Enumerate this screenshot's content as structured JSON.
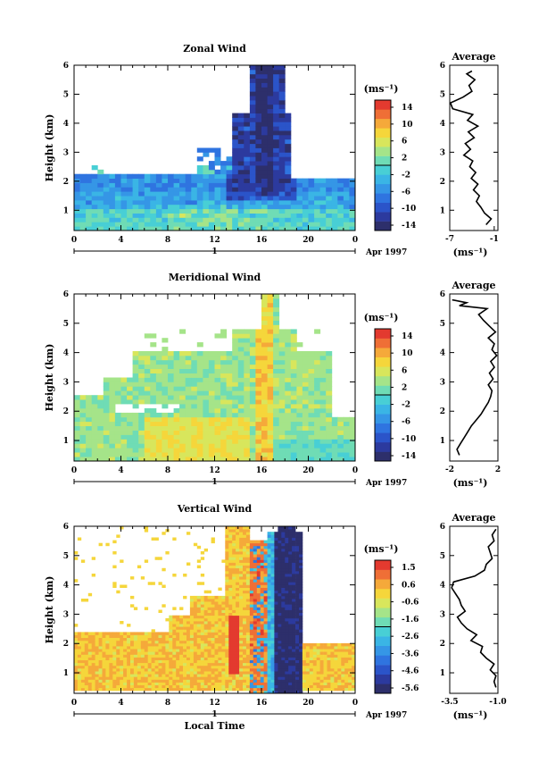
{
  "colors": {
    "scale": [
      "#2d2f6b",
      "#2c3a9e",
      "#2b54c9",
      "#2f74e0",
      "#3596e6",
      "#3ab5e5",
      "#48cfd5",
      "#6fdcb5",
      "#a5e489",
      "#d8e65c",
      "#f5d63b",
      "#f5a93a",
      "#ef6f36",
      "#e33a2f"
    ]
  },
  "chart_data": [
    {
      "type": "heatmap",
      "title": "Zonal Wind",
      "ylabel": "Height (km)",
      "x_ticks": [
        "0",
        "4",
        "8",
        "12",
        "16",
        "20",
        "0"
      ],
      "y_ticks": [
        "1",
        "2",
        "3",
        "4",
        "5",
        "6"
      ],
      "xlim": [
        0,
        24
      ],
      "ylim": [
        0.3,
        6
      ],
      "date_label": "Apr 1997",
      "day_label": "1",
      "colorbar": {
        "unit": "(ms⁻¹)",
        "labels": [
          "14",
          "10",
          "6",
          "2",
          "-2",
          "-6",
          "-10",
          "-14"
        ],
        "range": [
          -16,
          16
        ]
      },
      "average": {
        "title": "Average",
        "xlabel": "(ms⁻¹)",
        "x_ticks": [
          "-7",
          "-1"
        ],
        "xlim": [
          -7,
          -0.5
        ],
        "points": [
          [
            -2.1,
            0.5
          ],
          [
            -1.4,
            0.7
          ],
          [
            -2.3,
            0.9
          ],
          [
            -2.8,
            1.1
          ],
          [
            -3.4,
            1.3
          ],
          [
            -3.0,
            1.5
          ],
          [
            -3.8,
            1.7
          ],
          [
            -3.2,
            1.9
          ],
          [
            -4.1,
            2.1
          ],
          [
            -3.5,
            2.3
          ],
          [
            -4.3,
            2.5
          ],
          [
            -3.9,
            2.7
          ],
          [
            -5.1,
            2.9
          ],
          [
            -4.2,
            3.1
          ],
          [
            -4.9,
            3.3
          ],
          [
            -3.7,
            3.5
          ],
          [
            -4.5,
            3.7
          ],
          [
            -3.2,
            3.9
          ],
          [
            -4.6,
            4.1
          ],
          [
            -3.9,
            4.3
          ],
          [
            -6.6,
            4.5
          ],
          [
            -6.9,
            4.7
          ],
          [
            -5.2,
            4.9
          ],
          [
            -4.0,
            5.1
          ],
          [
            -4.4,
            5.3
          ],
          [
            -3.6,
            5.5
          ],
          [
            -4.7,
            5.7
          ],
          [
            -4.0,
            5.8
          ]
        ]
      }
    },
    {
      "type": "heatmap",
      "title": "Meridional Wind",
      "ylabel": "Height (km)",
      "x_ticks": [
        "0",
        "4",
        "8",
        "12",
        "16",
        "20",
        "0"
      ],
      "y_ticks": [
        "1",
        "2",
        "3",
        "4",
        "5",
        "6"
      ],
      "xlim": [
        0,
        24
      ],
      "ylim": [
        0.3,
        6
      ],
      "date_label": "Apr 1997",
      "day_label": "1",
      "colorbar": {
        "unit": "(ms⁻¹)",
        "labels": [
          "14",
          "10",
          "6",
          "2",
          "-2",
          "-6",
          "-10",
          "-14"
        ],
        "range": [
          -16,
          16
        ]
      },
      "average": {
        "title": "Average",
        "xlabel": "(ms⁻¹)",
        "x_ticks": [
          "-2",
          "2"
        ],
        "xlim": [
          -2,
          2
        ],
        "points": [
          [
            -1.2,
            0.5
          ],
          [
            -1.4,
            0.7
          ],
          [
            -1.1,
            0.9
          ],
          [
            -0.8,
            1.1
          ],
          [
            -0.5,
            1.3
          ],
          [
            -0.2,
            1.5
          ],
          [
            0.2,
            1.7
          ],
          [
            0.6,
            1.9
          ],
          [
            0.9,
            2.1
          ],
          [
            1.2,
            2.3
          ],
          [
            1.4,
            2.5
          ],
          [
            1.5,
            2.7
          ],
          [
            1.2,
            2.9
          ],
          [
            1.6,
            3.1
          ],
          [
            1.3,
            3.3
          ],
          [
            1.7,
            3.5
          ],
          [
            1.4,
            3.7
          ],
          [
            1.9,
            3.9
          ],
          [
            1.5,
            4.1
          ],
          [
            1.7,
            4.3
          ],
          [
            1.2,
            4.5
          ],
          [
            1.8,
            4.7
          ],
          [
            1.3,
            4.9
          ],
          [
            0.8,
            5.1
          ],
          [
            0.4,
            5.3
          ],
          [
            1.1,
            5.5
          ],
          [
            -1.2,
            5.6
          ],
          [
            -0.6,
            5.7
          ],
          [
            -1.8,
            5.8
          ]
        ]
      }
    },
    {
      "type": "heatmap",
      "title": "Vertical Wind",
      "ylabel": "Height (km)",
      "xlabel": "Local Time",
      "x_ticks": [
        "0",
        "4",
        "8",
        "12",
        "16",
        "20",
        "0"
      ],
      "y_ticks": [
        "1",
        "2",
        "3",
        "4",
        "5",
        "6"
      ],
      "xlim": [
        0,
        24
      ],
      "ylim": [
        0.3,
        6
      ],
      "date_label": "Apr 1997",
      "day_label": "1",
      "colorbar": {
        "unit": "(ms⁻¹)",
        "labels": [
          "1.5",
          "0.6",
          "-0.6",
          "-1.6",
          "-2.6",
          "-3.6",
          "-4.6",
          "-5.6"
        ],
        "range": [
          -6,
          2
        ]
      },
      "average": {
        "title": "Average",
        "xlabel": "(ms⁻¹)",
        "x_ticks": [
          "-3.5",
          "-1.0"
        ],
        "xlim": [
          -3.5,
          -1.0
        ],
        "points": [
          [
            -1.1,
            0.5
          ],
          [
            -1.2,
            0.7
          ],
          [
            -1.1,
            0.9
          ],
          [
            -1.4,
            1.1
          ],
          [
            -1.2,
            1.3
          ],
          [
            -1.6,
            1.5
          ],
          [
            -1.9,
            1.7
          ],
          [
            -1.8,
            1.9
          ],
          [
            -2.4,
            2.1
          ],
          [
            -2.1,
            2.3
          ],
          [
            -2.6,
            2.5
          ],
          [
            -2.9,
            2.7
          ],
          [
            -3.1,
            2.9
          ],
          [
            -2.7,
            3.1
          ],
          [
            -2.9,
            3.3
          ],
          [
            -3.0,
            3.5
          ],
          [
            -3.2,
            3.7
          ],
          [
            -3.4,
            3.9
          ],
          [
            -3.3,
            4.1
          ],
          [
            -2.2,
            4.3
          ],
          [
            -1.7,
            4.5
          ],
          [
            -1.6,
            4.7
          ],
          [
            -1.3,
            4.9
          ],
          [
            -1.4,
            5.1
          ],
          [
            -1.5,
            5.3
          ],
          [
            -1.2,
            5.5
          ],
          [
            -1.3,
            5.7
          ],
          [
            -1.1,
            5.9
          ]
        ]
      }
    }
  ]
}
